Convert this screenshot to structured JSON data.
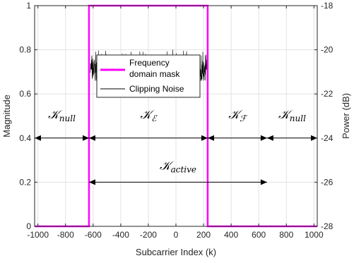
{
  "chart_data": {
    "type": "line",
    "xlabel": "Subcarrier Index (k)",
    "ylabel": "Magnitude",
    "y2label": "Power (dB)",
    "xlim": [
      -1024,
      1024
    ],
    "ylim": [
      0,
      1
    ],
    "y2lim": [
      -28,
      -18
    ],
    "grid": true,
    "xticks": [
      -1000,
      -800,
      -600,
      -400,
      -200,
      0,
      200,
      400,
      600,
      800,
      1000
    ],
    "xticklabels": [
      "-1000",
      "-800",
      "-600",
      "-400",
      "-200",
      "0",
      "200",
      "400",
      "600",
      "800",
      "1000"
    ],
    "yticks": [
      0,
      0.2,
      0.4,
      0.6,
      0.8,
      1
    ],
    "yticklabels": [
      "0",
      "0.2",
      "0.4",
      "0.6",
      "0.8",
      "1"
    ],
    "y2ticks": [
      -28,
      -26,
      -24,
      -22,
      -20,
      -18
    ],
    "y2ticklabels": [
      "-28",
      "-26",
      "-24",
      "-22",
      "-20",
      "-18"
    ],
    "series": [
      {
        "name": "Frequency domain mask",
        "color": "#ff00ff",
        "x": [
          -1024,
          -630,
          -630,
          230,
          230,
          1024
        ],
        "y": [
          0,
          0,
          1,
          1,
          0,
          0
        ]
      },
      {
        "name": "Clipping Noise",
        "color": "#000000",
        "x_range": [
          -620,
          230
        ],
        "y2_mean": -20.85,
        "y2_min": -21.4,
        "y2_max": -19.9
      }
    ],
    "legend": {
      "placement": "center",
      "entries": [
        "Frequency domain mask",
        "Clipping Noise"
      ],
      "mask_lines": [
        "Frequency",
        "domain mask"
      ]
    },
    "regions": [
      {
        "symbol": "K",
        "subscript": "null",
        "x_from": -1024,
        "x_to": -630,
        "y": 0.4
      },
      {
        "symbol": "K",
        "subscript": "E",
        "x_from": -630,
        "x_to": 230,
        "y": 0.4
      },
      {
        "symbol": "K",
        "subscript": "F",
        "x_from": 230,
        "x_to": 660,
        "y": 0.4
      },
      {
        "symbol": "K",
        "subscript": "null",
        "x_from": 660,
        "x_to": 1024,
        "y": 0.4
      },
      {
        "symbol": "K",
        "subscript": "active",
        "x_from": -630,
        "x_to": 660,
        "y": 0.2
      }
    ]
  }
}
